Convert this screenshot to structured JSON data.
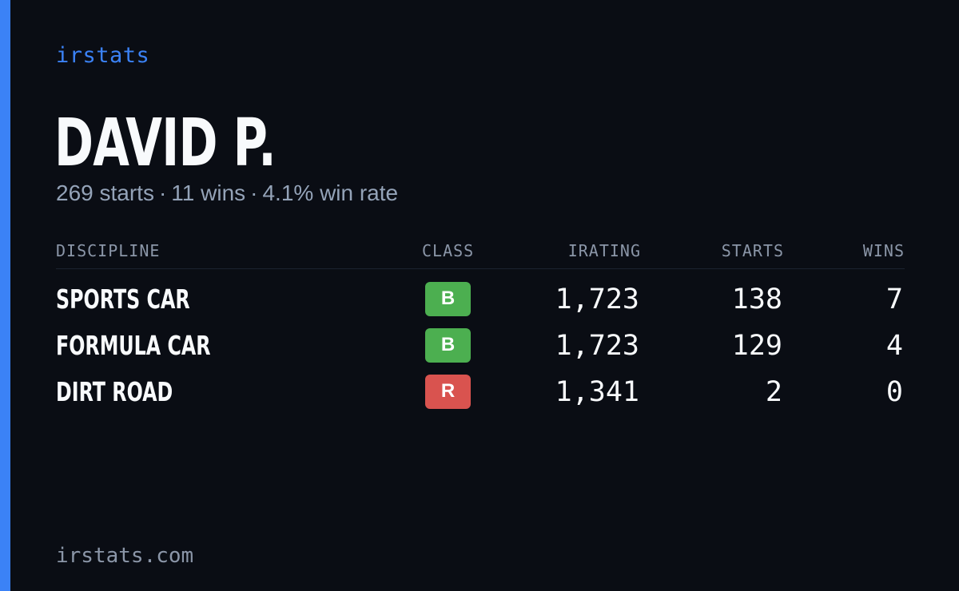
{
  "brand": "irstats",
  "driver_name": "DAVID P.",
  "summary": {
    "starts": "269 starts",
    "wins": "11 wins",
    "win_rate": "4.1% win rate",
    "separator": "·"
  },
  "table": {
    "headers": {
      "discipline": "DISCIPLINE",
      "class": "CLASS",
      "irating": "IRATING",
      "starts": "STARTS",
      "wins": "WINS"
    },
    "rows": [
      {
        "discipline": "SPORTS CAR",
        "class": "B",
        "class_color": "#4caf50",
        "irating": "1,723",
        "starts": "138",
        "wins": "7"
      },
      {
        "discipline": "FORMULA CAR",
        "class": "B",
        "class_color": "#4caf50",
        "irating": "1,723",
        "starts": "129",
        "wins": "4"
      },
      {
        "discipline": "DIRT ROAD",
        "class": "R",
        "class_color": "#d9534f",
        "irating": "1,341",
        "starts": "2",
        "wins": "0"
      }
    ]
  },
  "footer": "irstats.com",
  "colors": {
    "background": "#0a0d14",
    "accent": "#3b82f6",
    "text": "#f8fafc",
    "muted": "#94a3b8"
  }
}
